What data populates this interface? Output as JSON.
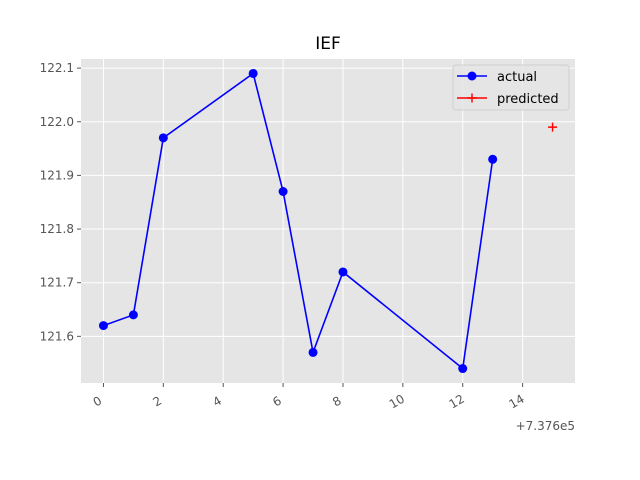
{
  "chart_data": {
    "type": "line",
    "title": "IEF",
    "xlabel": "",
    "ylabel": "",
    "x_offset_label": "+7.376e5",
    "xlim": [
      -0.75,
      15.75
    ],
    "ylim": [
      121.513,
      122.117
    ],
    "x_ticks": [
      0,
      2,
      4,
      6,
      8,
      10,
      12,
      14
    ],
    "x_tick_labels": [
      "0",
      "2",
      "4",
      "6",
      "8",
      "10",
      "12",
      "14"
    ],
    "y_ticks": [
      121.6,
      121.7,
      121.8,
      121.9,
      122.0,
      122.1
    ],
    "y_tick_labels": [
      "121.6",
      "121.7",
      "121.8",
      "121.9",
      "122.0",
      "122.1"
    ],
    "grid": true,
    "legend_position": "top-right",
    "series": [
      {
        "name": "actual",
        "color": "#0000ff",
        "marker": "circle",
        "x": [
          0,
          1,
          2,
          5,
          6,
          7,
          8,
          12,
          13
        ],
        "y": [
          121.62,
          121.64,
          121.97,
          122.09,
          121.87,
          121.57,
          121.72,
          121.54,
          121.93
        ]
      },
      {
        "name": "predicted",
        "color": "#ff0000",
        "marker": "plus",
        "x": [
          15
        ],
        "y": [
          121.99
        ]
      }
    ]
  }
}
